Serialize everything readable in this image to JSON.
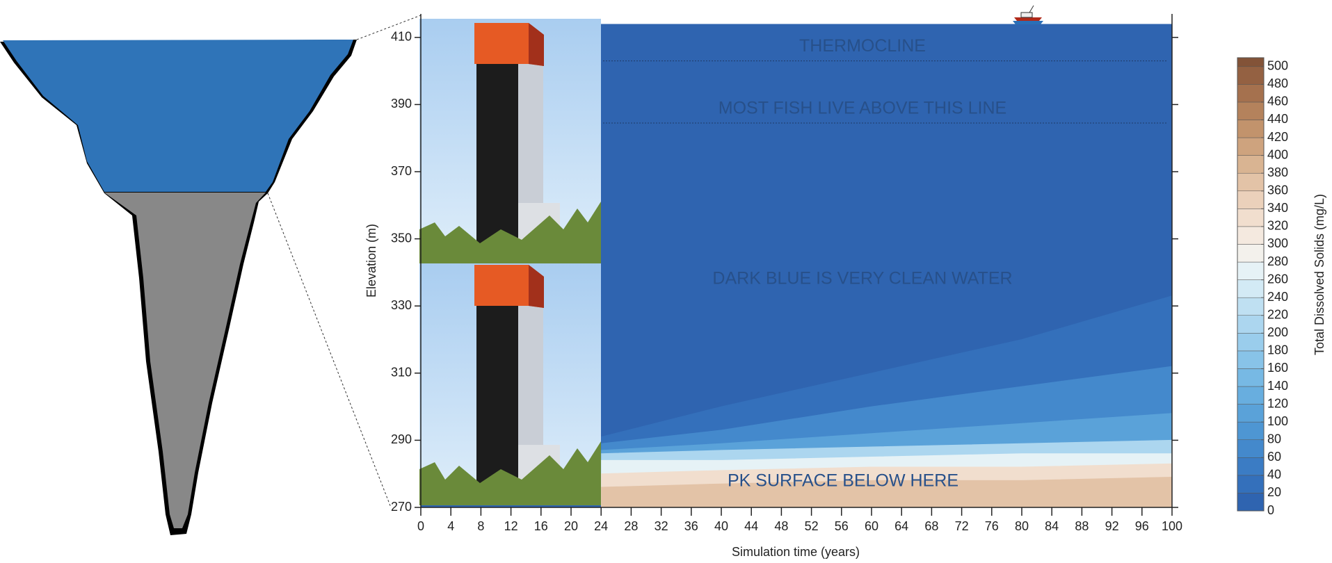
{
  "chart_data": {
    "type": "filled-contour",
    "xlabel": "Simulation time (years)",
    "ylabel": "Elevation (m)",
    "xlim": [
      0,
      100
    ],
    "xticks": [
      0,
      4,
      8,
      12,
      16,
      20,
      24,
      28,
      32,
      36,
      40,
      44,
      48,
      52,
      56,
      60,
      64,
      68,
      72,
      76,
      80,
      84,
      88,
      92,
      96,
      100
    ],
    "ylim": [
      270,
      417
    ],
    "yticks": [
      270,
      290,
      310,
      330,
      350,
      370,
      390,
      410
    ],
    "water_surface": 414,
    "background_color": "#2f64b0",
    "contours": [
      {
        "level": 20,
        "color": "#3470bb",
        "x": [
          24,
          40,
          60,
          80,
          100
        ],
        "y": [
          291,
          300,
          310,
          320,
          333
        ]
      },
      {
        "level": 60,
        "color": "#4489cc",
        "x": [
          24,
          40,
          60,
          80,
          100
        ],
        "y": [
          289,
          293,
          300,
          306,
          312
        ]
      },
      {
        "level": 100,
        "color": "#5aa2d9",
        "x": [
          24,
          40,
          60,
          80,
          100
        ],
        "y": [
          287,
          289,
          292,
          295,
          298
        ]
      },
      {
        "level": 200,
        "color": "#acd6ef",
        "x": [
          24,
          40,
          60,
          80,
          100
        ],
        "y": [
          286,
          287,
          288,
          289,
          290
        ]
      },
      {
        "level": 260,
        "color": "#e6f2f6",
        "x": [
          24,
          40,
          60,
          80,
          100
        ],
        "y": [
          284,
          284,
          285,
          286,
          286
        ]
      },
      {
        "level": 320,
        "color": "#f1dece",
        "x": [
          24,
          40,
          60,
          80,
          100
        ],
        "y": [
          280,
          281,
          282,
          282,
          283
        ]
      },
      {
        "level": 360,
        "color": "#e3c3a7",
        "x": [
          24,
          40,
          60,
          80,
          100
        ],
        "y": [
          276,
          277,
          278,
          278,
          279
        ]
      }
    ],
    "lines": [
      {
        "text": "THERMOCLINE",
        "y": 403
      },
      {
        "text": "MOST FISH LIVE ABOVE THIS LINE",
        "y": 384.5
      }
    ],
    "notes": [
      "DARK BLUE IS VERY CLEAN WATER",
      "PK SURFACE BELOW HERE"
    ],
    "colorbar": {
      "label": "Total Dissolved Solids (mg/L)",
      "lim": [
        0,
        510
      ],
      "ticks": [
        0,
        20,
        40,
        60,
        80,
        100,
        120,
        140,
        160,
        180,
        200,
        220,
        240,
        260,
        280,
        300,
        320,
        340,
        360,
        380,
        400,
        420,
        440,
        460,
        480,
        500
      ],
      "colors": [
        "#2f64b0",
        "#3470bb",
        "#3b7cc4",
        "#4489cc",
        "#4e96d3",
        "#5aa2d9",
        "#68aedf",
        "#77b9e4",
        "#88c3e8",
        "#9acdec",
        "#acd6ef",
        "#bfe0f2",
        "#d3eaf5",
        "#e6f2f6",
        "#f3f1ec",
        "#f4e9df",
        "#f1dece",
        "#ebd1bb",
        "#e3c3a7",
        "#d9b492",
        "#cea37e",
        "#c2936c",
        "#b4825c",
        "#a5714e",
        "#946142",
        "#835338"
      ]
    }
  }
}
